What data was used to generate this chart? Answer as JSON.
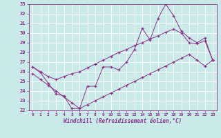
{
  "xlabel": "Windchill (Refroidissement éolien,°C)",
  "xlim": [
    -0.5,
    23.5
  ],
  "ylim": [
    22,
    33
  ],
  "yticks": [
    22,
    23,
    24,
    25,
    26,
    27,
    28,
    29,
    30,
    31,
    32,
    33
  ],
  "xticks": [
    0,
    1,
    2,
    3,
    4,
    5,
    6,
    7,
    8,
    9,
    10,
    11,
    12,
    13,
    14,
    15,
    16,
    17,
    18,
    19,
    20,
    21,
    22,
    23
  ],
  "bg_color": "#caeaea",
  "grid_color": "#ffffff",
  "line_color": "#883388",
  "line1": [
    26.5,
    25.9,
    24.8,
    23.7,
    23.5,
    22.2,
    22.2,
    24.5,
    24.5,
    26.5,
    26.5,
    26.2,
    27.0,
    28.3,
    30.5,
    29.3,
    31.5,
    33.0,
    31.8,
    30.2,
    29.5,
    29.0,
    29.5,
    27.2
  ],
  "line2": [
    26.5,
    26.0,
    25.5,
    25.2,
    25.5,
    25.8,
    26.0,
    26.4,
    26.8,
    27.2,
    27.6,
    28.0,
    28.3,
    28.7,
    29.0,
    29.4,
    29.7,
    30.1,
    30.4,
    30.0,
    29.0,
    28.9,
    29.2,
    27.2
  ],
  "line3": [
    25.8,
    25.2,
    24.6,
    24.0,
    23.4,
    22.8,
    22.2,
    22.6,
    23.0,
    23.4,
    23.8,
    24.2,
    24.6,
    25.0,
    25.4,
    25.8,
    26.2,
    26.6,
    27.0,
    27.4,
    27.8,
    27.2,
    26.6,
    27.2
  ]
}
